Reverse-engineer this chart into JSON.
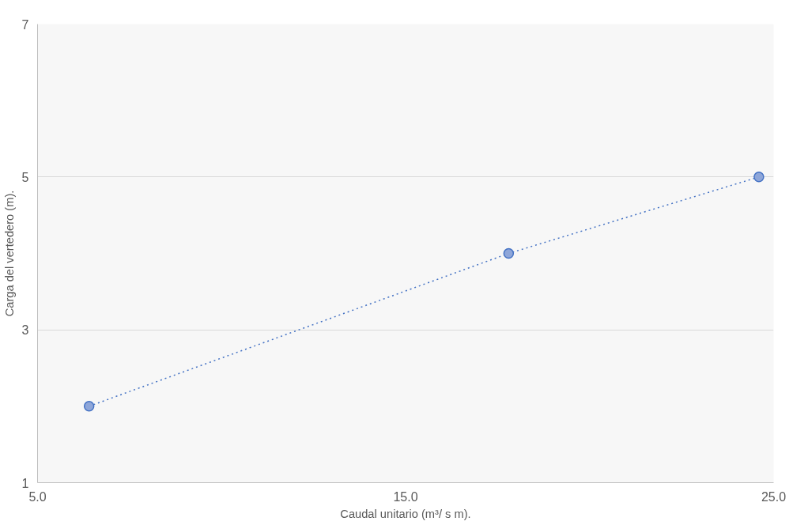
{
  "chart_data": {
    "type": "line",
    "xlabel": "Caudal unitario (m³/ s m).",
    "ylabel": "Carga del vertedero (m).",
    "x": [
      6.4,
      17.8,
      24.6
    ],
    "series": [
      {
        "color": "#4472c4",
        "values": [
          2,
          4,
          5
        ]
      }
    ],
    "xlim": [
      5,
      25
    ],
    "xticks": [
      {
        "value": 5,
        "label": "5.0"
      },
      {
        "value": 15,
        "label": "15.0"
      },
      {
        "value": 25,
        "label": "25.0"
      }
    ],
    "ylim": [
      1,
      7
    ],
    "yticks": [
      1,
      3,
      5,
      7
    ],
    "grid": "y",
    "marker": "circle",
    "line_style": "dotted"
  }
}
